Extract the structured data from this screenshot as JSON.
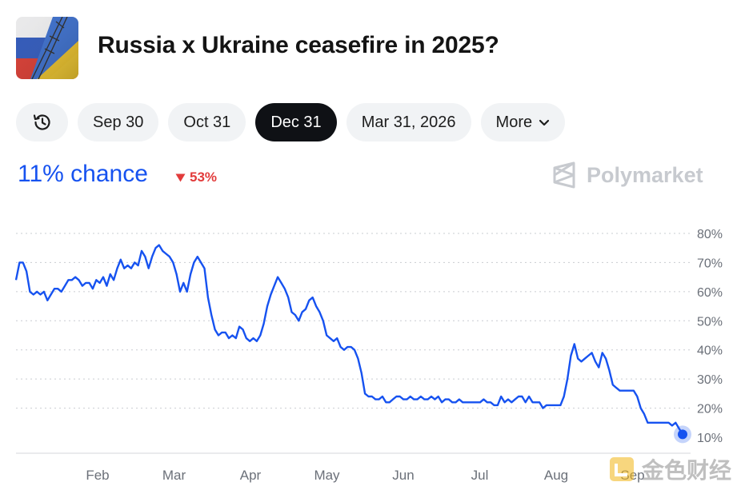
{
  "header": {
    "title": "Russia x Ukraine ceasefire in 2025?",
    "thumbnail_icon": "russia-ukraine-flag-image"
  },
  "tabs": [
    {
      "label": "Sep 30",
      "active": false
    },
    {
      "label": "Oct 31",
      "active": false
    },
    {
      "label": "Dec 31",
      "active": true
    },
    {
      "label": "Mar 31, 2026",
      "active": false
    },
    {
      "label": "More",
      "active": false
    }
  ],
  "summary": {
    "chance": "11% chance",
    "delta": "53%",
    "delta_direction": "down",
    "brand": "Polymarket"
  },
  "watermark": "金色财经",
  "colors": {
    "accent": "#1652f0",
    "negative": "#e23b3b",
    "active_tab": "#0f1115",
    "inactive_tab": "#f1f3f5"
  },
  "chart_data": {
    "type": "line",
    "ylim": [
      10,
      80
    ],
    "y_ticks": [
      80,
      70,
      60,
      50,
      40,
      30,
      20,
      10
    ],
    "y_tick_labels": [
      "80%",
      "70%",
      "60%",
      "50%",
      "40%",
      "30%",
      "20%",
      "10%"
    ],
    "x_tick_labels": [
      "Feb",
      "Mar",
      "Apr",
      "May",
      "Jun",
      "Jul",
      "Aug",
      "Sep"
    ],
    "grid": true,
    "series": [
      {
        "values": [
          64,
          70,
          70,
          67,
          60,
          59,
          60,
          59,
          60,
          57,
          59,
          61,
          61,
          60,
          62,
          64,
          64,
          65,
          64,
          62,
          63,
          63,
          61,
          64,
          63,
          65,
          62,
          66,
          64,
          68,
          71,
          68,
          69,
          68,
          70,
          69,
          74,
          72,
          68,
          72,
          75,
          76,
          74,
          73,
          72,
          70,
          66,
          60,
          63,
          60,
          66,
          70,
          72,
          70,
          68,
          58,
          52,
          47,
          45,
          46,
          46,
          44,
          45,
          44,
          48,
          47,
          44,
          43,
          44,
          43,
          45,
          49,
          55,
          59,
          62,
          65,
          63,
          61,
          58,
          53,
          52,
          50,
          53,
          54,
          57,
          58,
          55,
          53,
          50,
          45,
          44,
          43,
          44,
          41,
          40,
          41,
          41,
          40,
          37,
          32,
          25,
          24,
          24,
          23,
          23,
          24,
          22,
          22,
          23,
          24,
          24,
          23,
          23,
          24,
          23,
          23,
          24,
          23,
          23,
          24,
          23,
          24,
          22,
          23,
          23,
          22,
          22,
          23,
          22,
          22,
          22,
          22,
          22,
          22,
          23,
          22,
          22,
          21,
          21,
          24,
          22,
          23,
          22,
          23,
          24,
          24,
          22,
          24,
          22,
          22,
          22,
          20,
          21,
          21,
          21,
          21,
          21,
          24,
          30,
          38,
          42,
          37,
          36,
          37,
          38,
          39,
          36,
          34,
          39,
          37,
          33,
          28,
          27,
          26,
          26,
          26,
          26,
          26,
          24,
          20,
          18,
          15,
          15,
          15,
          15,
          15,
          15,
          15,
          14,
          15,
          13,
          11
        ]
      }
    ]
  }
}
